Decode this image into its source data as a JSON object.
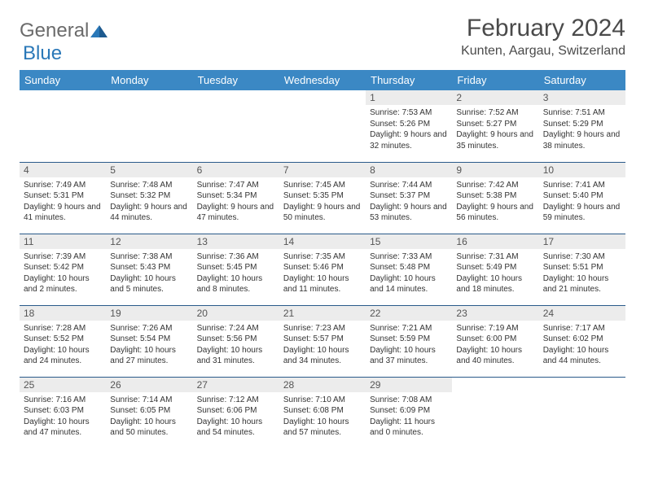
{
  "brand": {
    "word1": "General",
    "word2": "Blue"
  },
  "title": "February 2024",
  "location": "Kunten, Aargau, Switzerland",
  "colors": {
    "header_bg": "#3b88c4",
    "header_text": "#ffffff",
    "row_divider": "#2a5a8a",
    "daynum_bg": "#ececec",
    "body_text": "#333333",
    "logo_gray": "#6b6b6b",
    "logo_blue": "#2a78b8",
    "page_bg": "#ffffff"
  },
  "typography": {
    "title_fontsize": 30,
    "location_fontsize": 16,
    "dayheader_fontsize": 13,
    "daynum_fontsize": 12,
    "body_fontsize": 10
  },
  "day_headers": [
    "Sunday",
    "Monday",
    "Tuesday",
    "Wednesday",
    "Thursday",
    "Friday",
    "Saturday"
  ],
  "weeks": [
    [
      {
        "n": "",
        "sr": "",
        "ss": "",
        "dl": ""
      },
      {
        "n": "",
        "sr": "",
        "ss": "",
        "dl": ""
      },
      {
        "n": "",
        "sr": "",
        "ss": "",
        "dl": ""
      },
      {
        "n": "",
        "sr": "",
        "ss": "",
        "dl": ""
      },
      {
        "n": "1",
        "sr": "Sunrise: 7:53 AM",
        "ss": "Sunset: 5:26 PM",
        "dl": "Daylight: 9 hours and 32 minutes."
      },
      {
        "n": "2",
        "sr": "Sunrise: 7:52 AM",
        "ss": "Sunset: 5:27 PM",
        "dl": "Daylight: 9 hours and 35 minutes."
      },
      {
        "n": "3",
        "sr": "Sunrise: 7:51 AM",
        "ss": "Sunset: 5:29 PM",
        "dl": "Daylight: 9 hours and 38 minutes."
      }
    ],
    [
      {
        "n": "4",
        "sr": "Sunrise: 7:49 AM",
        "ss": "Sunset: 5:31 PM",
        "dl": "Daylight: 9 hours and 41 minutes."
      },
      {
        "n": "5",
        "sr": "Sunrise: 7:48 AM",
        "ss": "Sunset: 5:32 PM",
        "dl": "Daylight: 9 hours and 44 minutes."
      },
      {
        "n": "6",
        "sr": "Sunrise: 7:47 AM",
        "ss": "Sunset: 5:34 PM",
        "dl": "Daylight: 9 hours and 47 minutes."
      },
      {
        "n": "7",
        "sr": "Sunrise: 7:45 AM",
        "ss": "Sunset: 5:35 PM",
        "dl": "Daylight: 9 hours and 50 minutes."
      },
      {
        "n": "8",
        "sr": "Sunrise: 7:44 AM",
        "ss": "Sunset: 5:37 PM",
        "dl": "Daylight: 9 hours and 53 minutes."
      },
      {
        "n": "9",
        "sr": "Sunrise: 7:42 AM",
        "ss": "Sunset: 5:38 PM",
        "dl": "Daylight: 9 hours and 56 minutes."
      },
      {
        "n": "10",
        "sr": "Sunrise: 7:41 AM",
        "ss": "Sunset: 5:40 PM",
        "dl": "Daylight: 9 hours and 59 minutes."
      }
    ],
    [
      {
        "n": "11",
        "sr": "Sunrise: 7:39 AM",
        "ss": "Sunset: 5:42 PM",
        "dl": "Daylight: 10 hours and 2 minutes."
      },
      {
        "n": "12",
        "sr": "Sunrise: 7:38 AM",
        "ss": "Sunset: 5:43 PM",
        "dl": "Daylight: 10 hours and 5 minutes."
      },
      {
        "n": "13",
        "sr": "Sunrise: 7:36 AM",
        "ss": "Sunset: 5:45 PM",
        "dl": "Daylight: 10 hours and 8 minutes."
      },
      {
        "n": "14",
        "sr": "Sunrise: 7:35 AM",
        "ss": "Sunset: 5:46 PM",
        "dl": "Daylight: 10 hours and 11 minutes."
      },
      {
        "n": "15",
        "sr": "Sunrise: 7:33 AM",
        "ss": "Sunset: 5:48 PM",
        "dl": "Daylight: 10 hours and 14 minutes."
      },
      {
        "n": "16",
        "sr": "Sunrise: 7:31 AM",
        "ss": "Sunset: 5:49 PM",
        "dl": "Daylight: 10 hours and 18 minutes."
      },
      {
        "n": "17",
        "sr": "Sunrise: 7:30 AM",
        "ss": "Sunset: 5:51 PM",
        "dl": "Daylight: 10 hours and 21 minutes."
      }
    ],
    [
      {
        "n": "18",
        "sr": "Sunrise: 7:28 AM",
        "ss": "Sunset: 5:52 PM",
        "dl": "Daylight: 10 hours and 24 minutes."
      },
      {
        "n": "19",
        "sr": "Sunrise: 7:26 AM",
        "ss": "Sunset: 5:54 PM",
        "dl": "Daylight: 10 hours and 27 minutes."
      },
      {
        "n": "20",
        "sr": "Sunrise: 7:24 AM",
        "ss": "Sunset: 5:56 PM",
        "dl": "Daylight: 10 hours and 31 minutes."
      },
      {
        "n": "21",
        "sr": "Sunrise: 7:23 AM",
        "ss": "Sunset: 5:57 PM",
        "dl": "Daylight: 10 hours and 34 minutes."
      },
      {
        "n": "22",
        "sr": "Sunrise: 7:21 AM",
        "ss": "Sunset: 5:59 PM",
        "dl": "Daylight: 10 hours and 37 minutes."
      },
      {
        "n": "23",
        "sr": "Sunrise: 7:19 AM",
        "ss": "Sunset: 6:00 PM",
        "dl": "Daylight: 10 hours and 40 minutes."
      },
      {
        "n": "24",
        "sr": "Sunrise: 7:17 AM",
        "ss": "Sunset: 6:02 PM",
        "dl": "Daylight: 10 hours and 44 minutes."
      }
    ],
    [
      {
        "n": "25",
        "sr": "Sunrise: 7:16 AM",
        "ss": "Sunset: 6:03 PM",
        "dl": "Daylight: 10 hours and 47 minutes."
      },
      {
        "n": "26",
        "sr": "Sunrise: 7:14 AM",
        "ss": "Sunset: 6:05 PM",
        "dl": "Daylight: 10 hours and 50 minutes."
      },
      {
        "n": "27",
        "sr": "Sunrise: 7:12 AM",
        "ss": "Sunset: 6:06 PM",
        "dl": "Daylight: 10 hours and 54 minutes."
      },
      {
        "n": "28",
        "sr": "Sunrise: 7:10 AM",
        "ss": "Sunset: 6:08 PM",
        "dl": "Daylight: 10 hours and 57 minutes."
      },
      {
        "n": "29",
        "sr": "Sunrise: 7:08 AM",
        "ss": "Sunset: 6:09 PM",
        "dl": "Daylight: 11 hours and 0 minutes."
      },
      {
        "n": "",
        "sr": "",
        "ss": "",
        "dl": ""
      },
      {
        "n": "",
        "sr": "",
        "ss": "",
        "dl": ""
      }
    ]
  ]
}
